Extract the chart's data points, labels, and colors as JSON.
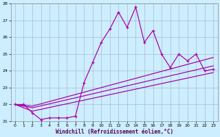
{
  "xlabel": "Windchill (Refroidissement éolien,°C)",
  "bg_color": "#cceeff",
  "line_color": "#aa00aa",
  "grid_color": "#aabbcc",
  "xlim": [
    -0.5,
    23.5
  ],
  "ylim": [
    21,
    28
  ],
  "yticks": [
    21,
    22,
    23,
    24,
    25,
    26,
    27,
    28
  ],
  "xticks": [
    0,
    1,
    2,
    3,
    4,
    5,
    6,
    7,
    8,
    9,
    10,
    11,
    12,
    13,
    14,
    15,
    16,
    17,
    18,
    19,
    20,
    21,
    22,
    23
  ],
  "main_x": [
    0,
    1,
    2,
    3,
    4,
    5,
    6,
    7,
    8,
    9,
    10,
    11,
    12,
    13,
    14,
    15,
    16,
    17,
    18,
    19,
    20,
    21,
    22,
    23
  ],
  "main_y": [
    22.0,
    22.0,
    21.5,
    21.1,
    21.2,
    21.2,
    21.2,
    21.3,
    23.3,
    24.5,
    25.7,
    26.5,
    27.5,
    26.6,
    27.8,
    25.7,
    26.4,
    25.0,
    24.2,
    25.0,
    24.6,
    25.0,
    24.0,
    24.1
  ],
  "line2_x": [
    0,
    2,
    23
  ],
  "line2_y": [
    22.0,
    21.9,
    24.8
  ],
  "line3_x": [
    0,
    2,
    23
  ],
  "line3_y": [
    22.0,
    21.8,
    24.3
  ],
  "line4_x": [
    0,
    2,
    23
  ],
  "line4_y": [
    22.0,
    21.6,
    23.9
  ]
}
